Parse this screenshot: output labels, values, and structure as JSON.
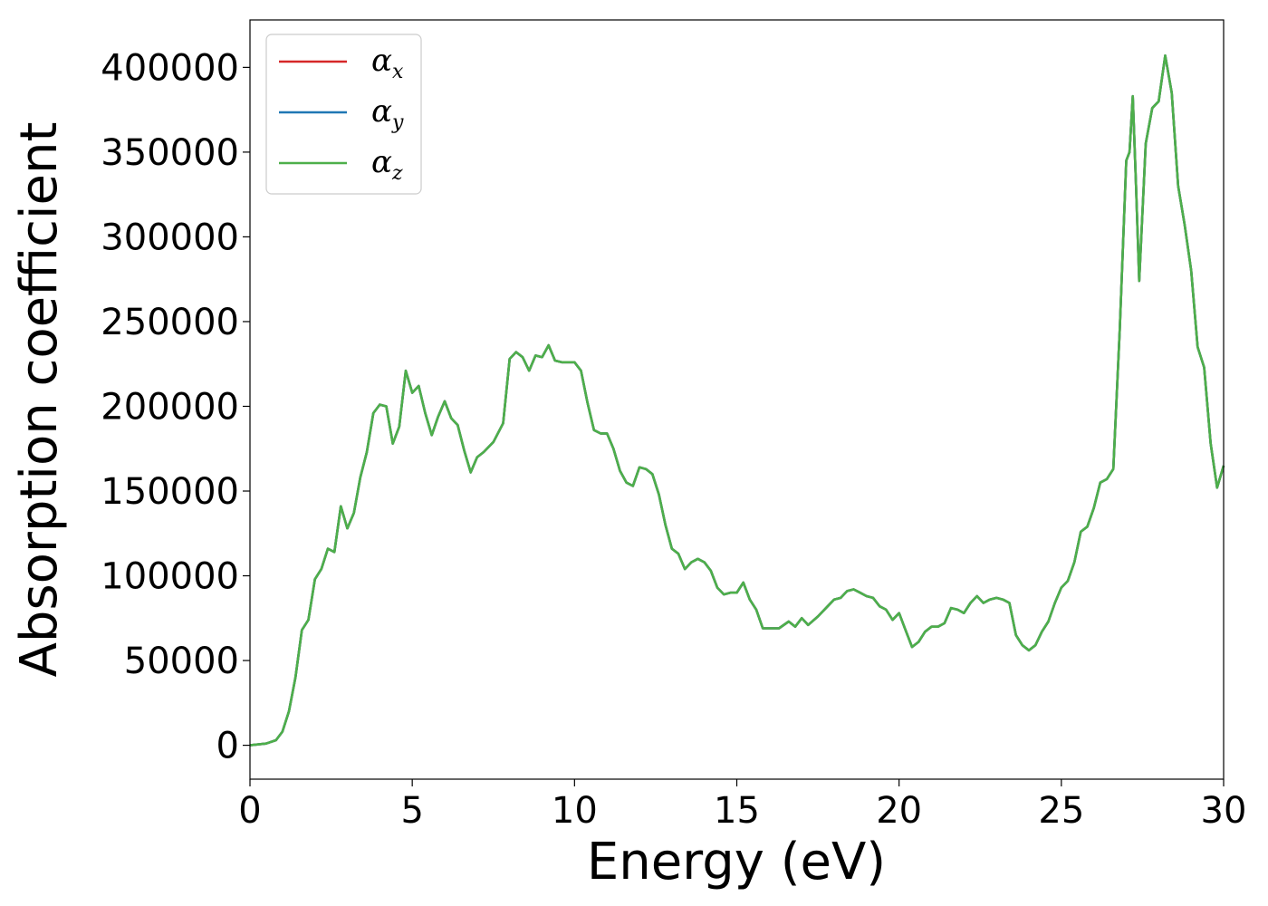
{
  "chart_data": {
    "type": "line",
    "xlabel": "Energy (eV)",
    "ylabel": "Absorption coefficient",
    "xlim": [
      0,
      30
    ],
    "ylim": [
      -20000,
      428000
    ],
    "xticks": [
      "0",
      "5",
      "10",
      "15",
      "20",
      "25",
      "30"
    ],
    "yticks": [
      "0",
      "50000",
      "100000",
      "150000",
      "200000",
      "250000",
      "300000",
      "350000",
      "400000"
    ],
    "grid": false,
    "legend_position": "top-left",
    "series": [
      {
        "name": "α",
        "subscript": "x",
        "color": "#d62728"
      },
      {
        "name": "α",
        "subscript": "y",
        "color": "#1f77b4"
      },
      {
        "name": "α",
        "subscript": "z",
        "color": "#4daf4a"
      }
    ],
    "x": [
      0,
      0.5,
      0.8,
      1.0,
      1.2,
      1.4,
      1.6,
      1.8,
      2.0,
      2.2,
      2.4,
      2.6,
      2.8,
      3.0,
      3.2,
      3.4,
      3.6,
      3.8,
      4.0,
      4.2,
      4.4,
      4.6,
      4.8,
      5.0,
      5.2,
      5.4,
      5.6,
      5.8,
      6.0,
      6.2,
      6.4,
      6.6,
      6.8,
      7.0,
      7.2,
      7.5,
      7.8,
      8.0,
      8.2,
      8.4,
      8.6,
      8.8,
      9.0,
      9.2,
      9.4,
      9.6,
      9.8,
      10.0,
      10.2,
      10.4,
      10.6,
      10.8,
      11.0,
      11.2,
      11.4,
      11.6,
      11.8,
      12.0,
      12.2,
      12.4,
      12.6,
      12.8,
      13.0,
      13.2,
      13.4,
      13.6,
      13.8,
      14.0,
      14.2,
      14.4,
      14.6,
      14.8,
      15.0,
      15.2,
      15.4,
      15.6,
      15.8,
      16.0,
      16.3,
      16.6,
      16.8,
      17.0,
      17.2,
      17.5,
      17.8,
      18.0,
      18.2,
      18.4,
      18.6,
      18.8,
      19.0,
      19.2,
      19.4,
      19.6,
      19.8,
      20.0,
      20.2,
      20.4,
      20.6,
      20.8,
      21.0,
      21.2,
      21.4,
      21.6,
      21.8,
      22.0,
      22.2,
      22.4,
      22.6,
      22.8,
      23.0,
      23.2,
      23.4,
      23.6,
      23.8,
      24.0,
      24.2,
      24.4,
      24.6,
      24.8,
      25.0,
      25.2,
      25.4,
      25.6,
      25.8,
      26.0,
      26.2,
      26.4,
      26.6,
      26.8,
      27.0,
      27.1,
      27.2,
      27.3,
      27.4,
      27.6,
      27.8,
      28.0,
      28.2,
      28.4,
      28.6,
      28.8,
      29.0,
      29.2,
      29.4,
      29.6,
      29.8,
      30.0
    ],
    "values": [
      0,
      1000,
      3000,
      8000,
      20000,
      40000,
      68000,
      74000,
      98000,
      104000,
      116000,
      114000,
      141000,
      128000,
      137000,
      158000,
      173000,
      196000,
      201000,
      200000,
      178000,
      188000,
      221000,
      208000,
      212000,
      196000,
      183000,
      194000,
      203000,
      193000,
      189000,
      174000,
      161000,
      170000,
      173000,
      179000,
      190000,
      228000,
      232000,
      229000,
      221000,
      230000,
      229000,
      236000,
      227000,
      226000,
      226000,
      226000,
      221000,
      202000,
      186000,
      184000,
      184000,
      175000,
      162000,
      155000,
      153000,
      164000,
      163000,
      160000,
      148000,
      130000,
      116000,
      113000,
      104000,
      108000,
      110000,
      108000,
      103000,
      93000,
      89000,
      90000,
      90000,
      96000,
      86000,
      80000,
      69000,
      69000,
      69000,
      73000,
      70000,
      75000,
      71000,
      76000,
      82000,
      86000,
      87000,
      91000,
      92000,
      90000,
      88000,
      87000,
      82000,
      80000,
      74000,
      78000,
      68000,
      58000,
      61000,
      67000,
      70000,
      70000,
      72000,
      81000,
      80000,
      78000,
      84000,
      88000,
      84000,
      86000,
      87000,
      86000,
      84000,
      65000,
      59000,
      56000,
      59000,
      67000,
      73000,
      84000,
      93000,
      97000,
      108000,
      126000,
      129000,
      140000,
      155000,
      157000,
      163000,
      245000,
      345000,
      350000,
      383000,
      330000,
      274000,
      355000,
      376000,
      380000,
      407000,
      385000,
      330000,
      307000,
      280000,
      235000,
      223000,
      178000,
      152000,
      165000
    ]
  }
}
